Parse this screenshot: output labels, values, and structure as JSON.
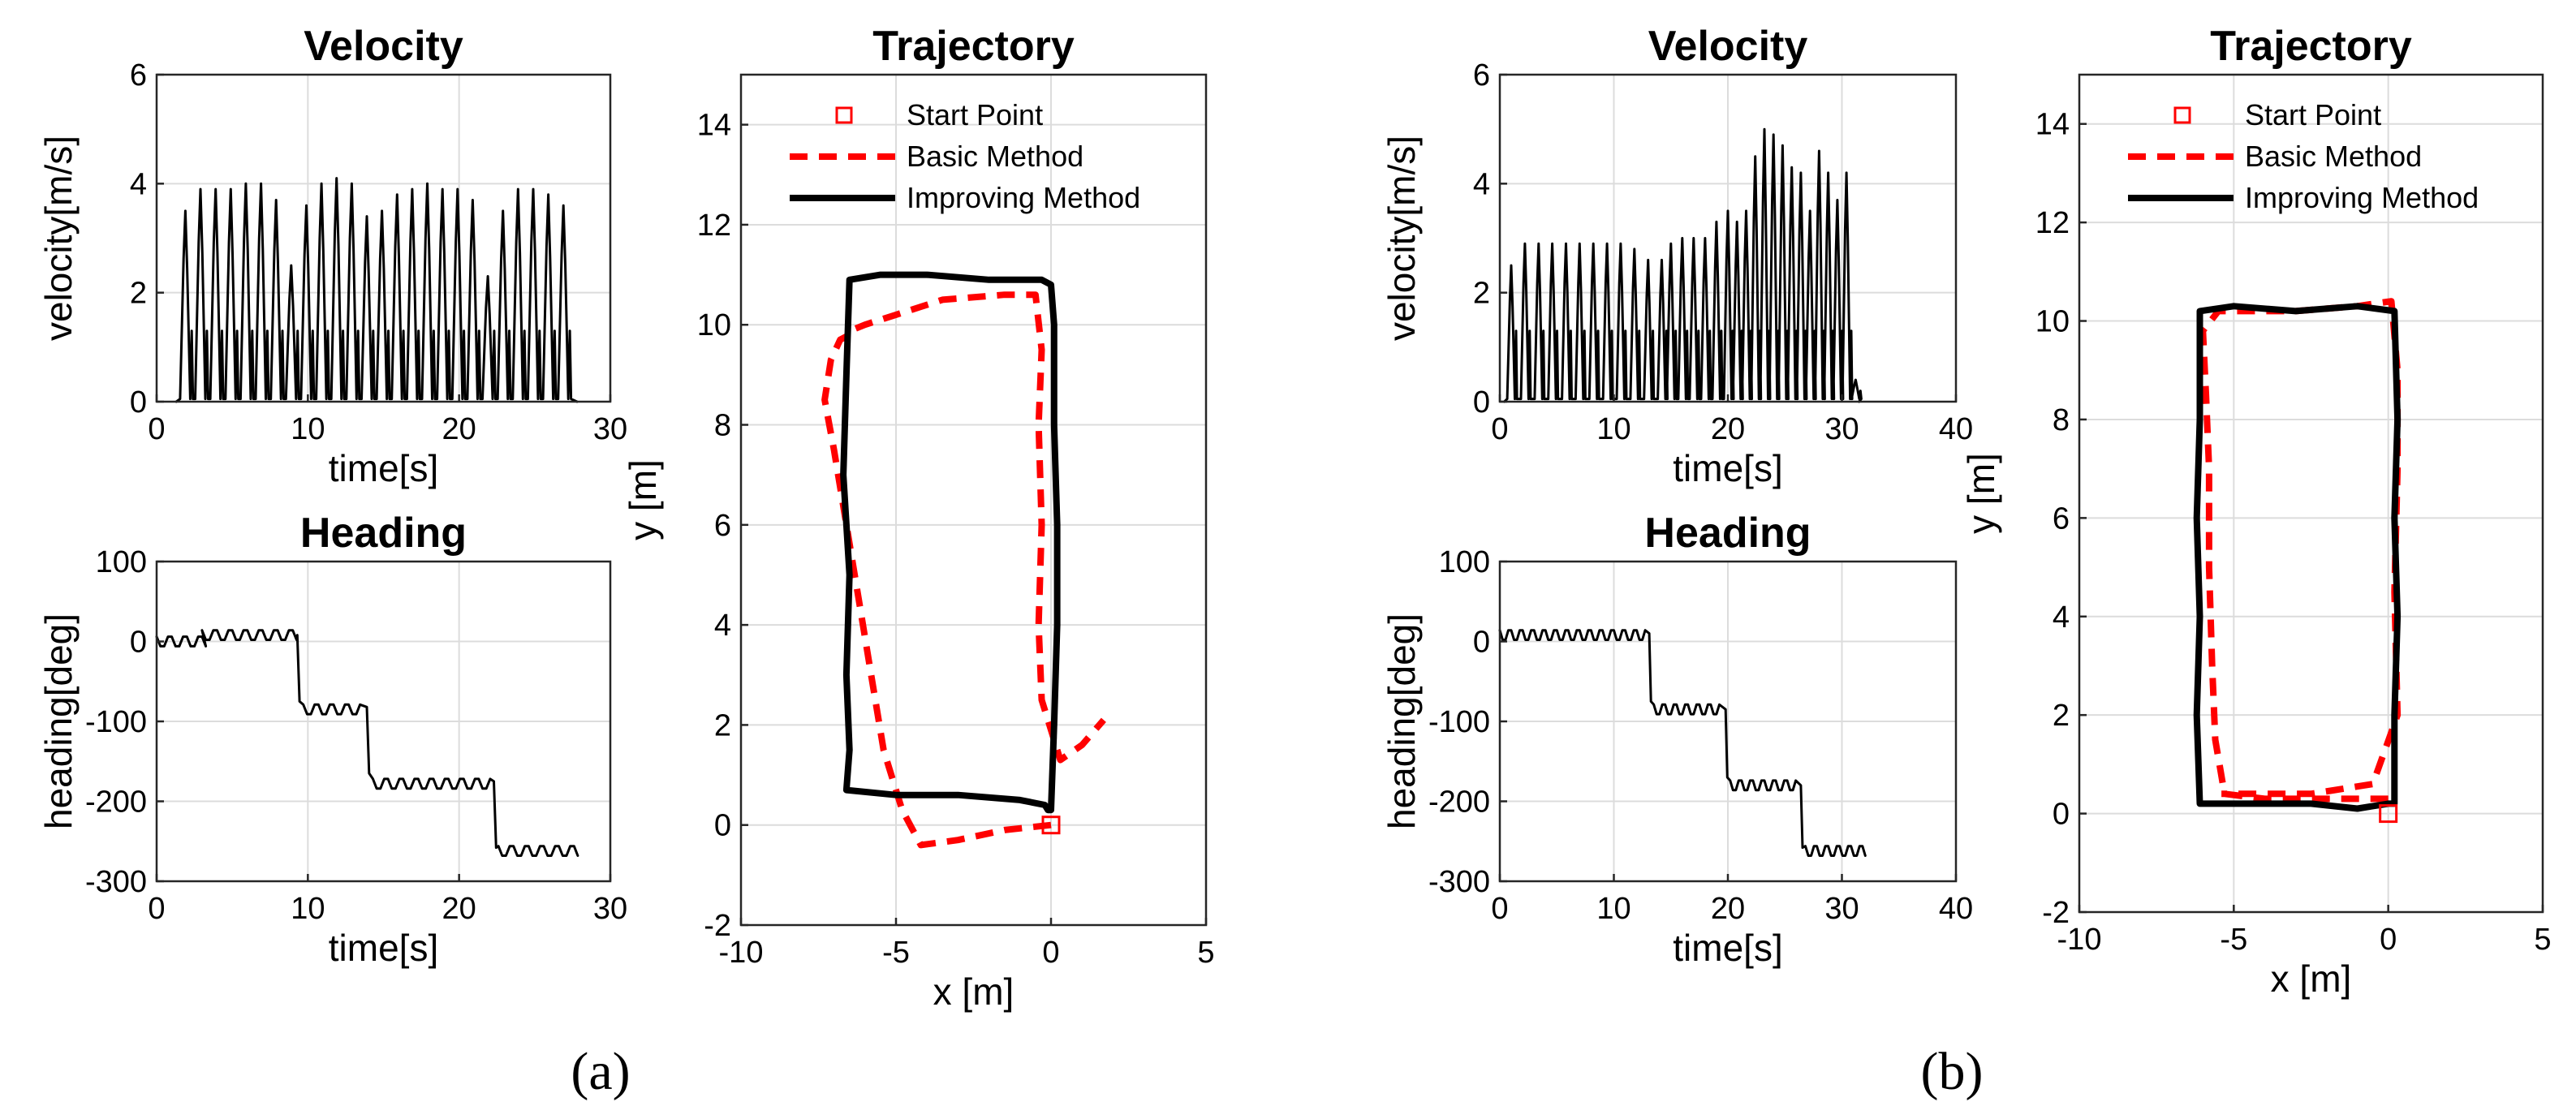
{
  "panel_labels": [
    "(a)",
    "(b)"
  ],
  "chart_data": [
    {
      "id": "a-velocity",
      "type": "line",
      "title": "Velocity",
      "xlabel": "time[s]",
      "ylabel": "velocity[m/s]",
      "xlim": [
        0,
        30
      ],
      "ylim": [
        0,
        6
      ],
      "xticks": [
        0,
        10,
        20,
        30
      ],
      "yticks": [
        0,
        2,
        4,
        6
      ],
      "grid": true,
      "series": [
        {
          "color": "#000000",
          "start": 1.3,
          "end": 27.8,
          "peaks": [
            [
              1.9,
              3.5
            ],
            [
              2.9,
              3.9
            ],
            [
              3.9,
              3.9
            ],
            [
              4.9,
              3.9
            ],
            [
              5.9,
              4.0
            ],
            [
              6.9,
              4.0
            ],
            [
              7.9,
              3.7
            ],
            [
              8.9,
              2.5
            ],
            [
              9.9,
              3.6
            ],
            [
              10.9,
              4.0
            ],
            [
              11.9,
              4.1
            ],
            [
              12.9,
              4.0
            ],
            [
              13.9,
              3.4
            ],
            [
              14.9,
              3.5
            ],
            [
              15.9,
              3.8
            ],
            [
              16.9,
              3.9
            ],
            [
              17.9,
              4.0
            ],
            [
              18.9,
              3.9
            ],
            [
              19.9,
              3.9
            ],
            [
              20.9,
              3.7
            ],
            [
              21.9,
              2.3
            ],
            [
              22.9,
              3.5
            ],
            [
              23.9,
              3.9
            ],
            [
              24.9,
              3.9
            ],
            [
              25.9,
              3.8
            ],
            [
              26.9,
              3.6
            ]
          ]
        }
      ]
    },
    {
      "id": "a-heading",
      "type": "line",
      "title": "Heading",
      "xlabel": "time[s]",
      "ylabel": "heading[deg]",
      "xlim": [
        0,
        30
      ],
      "ylim": [
        -300,
        100
      ],
      "xticks": [
        0,
        10,
        20,
        30
      ],
      "yticks": [
        -300,
        -200,
        -100,
        0,
        100
      ],
      "grid": true,
      "series": [
        {
          "color": "#000000",
          "levels": [
            [
              0,
              3,
              0
            ],
            [
              3,
              9,
              8
            ],
            [
              9.7,
              13.5,
              -85
            ],
            [
              14.3,
              22,
              -178
            ],
            [
              22.6,
              27.8,
              -262
            ]
          ],
          "steps": [
            [
              9.3,
              8,
              -75
            ],
            [
              13.9,
              -82,
              -165
            ],
            [
              22.3,
              -175,
              -258
            ]
          ]
        }
      ]
    },
    {
      "id": "a-trajectory",
      "type": "line",
      "title": "Trajectory",
      "xlabel": "x [m]",
      "ylabel": "y [m]",
      "xlim": [
        -10,
        5
      ],
      "ylim": [
        -2,
        15
      ],
      "xticks": [
        -10,
        -5,
        0,
        5
      ],
      "yticks": [
        -2,
        0,
        2,
        4,
        6,
        8,
        10,
        12,
        14
      ],
      "grid": true,
      "legend": {
        "placement": "top",
        "entries": [
          "Start Point",
          "Basic Method",
          "Improving Method"
        ]
      },
      "start_point": [
        0,
        0
      ],
      "series": [
        {
          "name": "Basic Method",
          "style": "dashed",
          "color": "#ff0000",
          "x": [
            0,
            -1.5,
            -3,
            -4.2,
            -4.8,
            -5.4,
            -5.8,
            -6.2,
            -6.6,
            -7,
            -7.3,
            -7.1,
            -6.8,
            -6.5,
            -6.4,
            -6,
            -5,
            -3.5,
            -1.5,
            -0.5,
            -0.3,
            -0.4,
            -0.3,
            -0.4,
            -0.3,
            0.3,
            1,
            1.7
          ],
          "y": [
            0,
            -0.1,
            -0.3,
            -0.4,
            0.3,
            1.5,
            3,
            4.5,
            6,
            7.5,
            8.5,
            9.3,
            9.7,
            9.8,
            9.9,
            10.0,
            10.2,
            10.5,
            10.6,
            10.6,
            9.5,
            8,
            6,
            4,
            2.5,
            1.3,
            1.6,
            2.1
          ]
        },
        {
          "name": "Improving Method",
          "style": "solid",
          "color": "#000000",
          "x": [
            0,
            0.1,
            0.2,
            0.2,
            0.1,
            0.1,
            0.0,
            -0.3,
            -2,
            -4,
            -5.5,
            -6.5,
            -6.6,
            -6.7,
            -6.5,
            -6.6,
            -6.5,
            -6.6,
            -5,
            -3,
            -1,
            -0.2,
            -0.1,
            0
          ],
          "y": [
            0.3,
            2,
            4,
            6,
            8,
            10,
            10.8,
            10.9,
            10.9,
            11.0,
            11.0,
            10.9,
            9,
            7,
            5,
            3,
            1.5,
            0.7,
            0.6,
            0.6,
            0.5,
            0.4,
            0.3,
            0.3
          ]
        }
      ]
    },
    {
      "id": "b-velocity",
      "type": "line",
      "title": "Velocity",
      "xlabel": "time[s]",
      "ylabel": "velocity[m/s]",
      "xlim": [
        0,
        40
      ],
      "ylim": [
        0,
        6
      ],
      "xticks": [
        0,
        10,
        20,
        30,
        40
      ],
      "yticks": [
        0,
        2,
        4,
        6
      ],
      "grid": true,
      "series": [
        {
          "color": "#000000",
          "start": 0.4,
          "end": 31.5,
          "peaks": [
            [
              1.0,
              2.5
            ],
            [
              2.2,
              2.9
            ],
            [
              3.4,
              2.9
            ],
            [
              4.6,
              2.9
            ],
            [
              5.8,
              2.9
            ],
            [
              7.0,
              2.9
            ],
            [
              8.2,
              2.9
            ],
            [
              9.4,
              2.9
            ],
            [
              10.6,
              2.9
            ],
            [
              11.8,
              2.8
            ],
            [
              13.0,
              2.6
            ],
            [
              14.2,
              2.6
            ],
            [
              15.0,
              2.9
            ],
            [
              16.0,
              3.0
            ],
            [
              17.0,
              3.0
            ],
            [
              18.0,
              3.0
            ],
            [
              19.0,
              3.3
            ],
            [
              20.0,
              3.5
            ],
            [
              20.8,
              3.3
            ],
            [
              21.6,
              3.5
            ],
            [
              22.4,
              4.5
            ],
            [
              23.2,
              5.0
            ],
            [
              24.0,
              4.9
            ],
            [
              24.8,
              4.7
            ],
            [
              25.6,
              4.3
            ],
            [
              26.4,
              4.2
            ],
            [
              27.2,
              3.5
            ],
            [
              28.0,
              4.6
            ],
            [
              28.8,
              4.2
            ],
            [
              29.6,
              3.7
            ],
            [
              30.4,
              4.2
            ],
            [
              31.2,
              0.4
            ]
          ]
        }
      ]
    },
    {
      "id": "b-heading",
      "type": "line",
      "title": "Heading",
      "xlabel": "time[s]",
      "ylabel": "heading[deg]",
      "xlim": [
        0,
        40
      ],
      "ylim": [
        -300,
        100
      ],
      "xticks": [
        0,
        10,
        20,
        30,
        40
      ],
      "yticks": [
        -300,
        -200,
        -100,
        0,
        100
      ],
      "grid": true,
      "series": [
        {
          "color": "#000000",
          "levels": [
            [
              0,
              12.8,
              8
            ],
            [
              13.5,
              19.3,
              -85
            ],
            [
              20.2,
              26,
              -180
            ],
            [
              26.8,
              32,
              -262
            ]
          ],
          "steps": [
            [
              13.1,
              10,
              -75
            ],
            [
              19.8,
              -85,
              -170
            ],
            [
              26.4,
              -180,
              -258
            ]
          ]
        }
      ]
    },
    {
      "id": "b-trajectory",
      "type": "line",
      "title": "Trajectory",
      "xlabel": "x [m]",
      "ylabel": "y [m]",
      "xlim": [
        -10,
        5
      ],
      "ylim": [
        -2,
        15
      ],
      "xticks": [
        -10,
        -5,
        0,
        5
      ],
      "yticks": [
        -2,
        0,
        2,
        4,
        6,
        8,
        10,
        12,
        14
      ],
      "grid": true,
      "legend": {
        "placement": "top",
        "entries": [
          "Start Point",
          "Basic Method",
          "Improving Method"
        ]
      },
      "start_point": [
        0,
        0
      ],
      "series": [
        {
          "name": "Basic Method",
          "style": "dashed",
          "color": "#ff0000",
          "x": [
            0,
            -1,
            -2,
            -3,
            -4,
            -5.3,
            -5.6,
            -5.7,
            -5.8,
            -5.8,
            -5.9,
            -6.0,
            -5.5,
            -3,
            -1,
            0.1,
            0.3,
            0.3,
            0.2,
            0.3,
            -0.5,
            -2.5,
            -4,
            -5.4
          ],
          "y": [
            0.3,
            0.3,
            0.3,
            0.3,
            0.3,
            0.4,
            1.5,
            3,
            5,
            7,
            8.5,
            9.8,
            10.2,
            10.2,
            10.3,
            10.4,
            9,
            7,
            4.5,
            2,
            0.6,
            0.4,
            0.4,
            0.4
          ]
        },
        {
          "name": "Improving Method",
          "style": "solid",
          "color": "#000000",
          "x": [
            0,
            -1,
            -2.5,
            -4,
            -5.3,
            -6.1,
            -6.2,
            -6.1,
            -6.2,
            -6.1,
            -6.1,
            -5,
            -3,
            -1,
            0.2,
            0.3,
            0.2,
            0.3,
            0.2,
            0.2,
            0
          ],
          "y": [
            0.2,
            0.1,
            0.2,
            0.2,
            0.2,
            0.2,
            2,
            4,
            6,
            8,
            10.2,
            10.3,
            10.2,
            10.3,
            10.2,
            8,
            6,
            4,
            2,
            0.2,
            0.2
          ]
        }
      ]
    }
  ]
}
